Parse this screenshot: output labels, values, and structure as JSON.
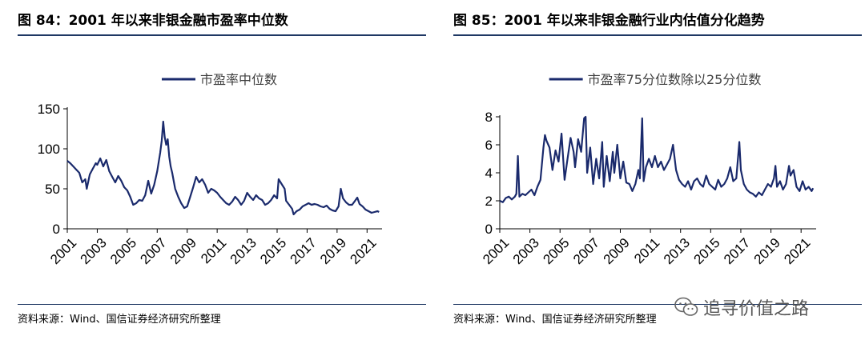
{
  "watermark": {
    "text": "追寻价值之路",
    "icon": "wechat-icon"
  },
  "colors": {
    "series": "#1a2a6c",
    "rule": "#1f3864",
    "axis": "#000000"
  },
  "charts": [
    {
      "figure_title": "图 84：2001 年以来非银金融市盈率中位数",
      "source": "资料来源：Wind、国信证券经济研究所整理"
    },
    {
      "figure_title": "图 85：2001 年以来非银金融行业内估值分化趋势",
      "source": "资料来源：Wind、国信证券经济研究所整理"
    }
  ],
  "chart_data": [
    {
      "type": "line",
      "title": "",
      "xlabel": "",
      "ylabel": "",
      "ylim": [
        0,
        150
      ],
      "yticks": [
        0,
        50,
        100,
        150
      ],
      "xlim": [
        2001,
        2022
      ],
      "xticks": [
        "2001",
        "2003",
        "2005",
        "2007",
        "2009",
        "2011",
        "2013",
        "2015",
        "2017",
        "2019",
        "2021"
      ],
      "legend_position": "top-center",
      "grid": false,
      "series": [
        {
          "name": "市盈率中位数",
          "color": "#1a2a6c",
          "points": [
            [
              2001.0,
              85
            ],
            [
              2001.2,
              82
            ],
            [
              2001.4,
              78
            ],
            [
              2001.6,
              74
            ],
            [
              2001.8,
              70
            ],
            [
              2002.0,
              58
            ],
            [
              2002.2,
              62
            ],
            [
              2002.3,
              50
            ],
            [
              2002.5,
              68
            ],
            [
              2002.7,
              75
            ],
            [
              2002.9,
              82
            ],
            [
              2003.0,
              80
            ],
            [
              2003.2,
              88
            ],
            [
              2003.4,
              78
            ],
            [
              2003.6,
              86
            ],
            [
              2003.8,
              72
            ],
            [
              2004.0,
              65
            ],
            [
              2004.2,
              58
            ],
            [
              2004.4,
              66
            ],
            [
              2004.6,
              60
            ],
            [
              2004.8,
              52
            ],
            [
              2005.0,
              48
            ],
            [
              2005.2,
              40
            ],
            [
              2005.4,
              30
            ],
            [
              2005.6,
              32
            ],
            [
              2005.8,
              36
            ],
            [
              2006.0,
              35
            ],
            [
              2006.2,
              42
            ],
            [
              2006.4,
              60
            ],
            [
              2006.6,
              44
            ],
            [
              2006.8,
              55
            ],
            [
              2007.0,
              72
            ],
            [
              2007.2,
              95
            ],
            [
              2007.3,
              110
            ],
            [
              2007.4,
              134
            ],
            [
              2007.5,
              115
            ],
            [
              2007.6,
              105
            ],
            [
              2007.7,
              112
            ],
            [
              2007.8,
              90
            ],
            [
              2007.9,
              78
            ],
            [
              2008.0,
              70
            ],
            [
              2008.2,
              50
            ],
            [
              2008.4,
              40
            ],
            [
              2008.6,
              32
            ],
            [
              2008.8,
              26
            ],
            [
              2009.0,
              28
            ],
            [
              2009.2,
              40
            ],
            [
              2009.4,
              52
            ],
            [
              2009.6,
              65
            ],
            [
              2009.8,
              58
            ],
            [
              2010.0,
              62
            ],
            [
              2010.2,
              55
            ],
            [
              2010.4,
              45
            ],
            [
              2010.6,
              50
            ],
            [
              2010.8,
              48
            ],
            [
              2011.0,
              45
            ],
            [
              2011.2,
              40
            ],
            [
              2011.4,
              36
            ],
            [
              2011.6,
              32
            ],
            [
              2011.8,
              30
            ],
            [
              2012.0,
              34
            ],
            [
              2012.2,
              40
            ],
            [
              2012.4,
              36
            ],
            [
              2012.6,
              30
            ],
            [
              2012.8,
              35
            ],
            [
              2013.0,
              45
            ],
            [
              2013.2,
              40
            ],
            [
              2013.4,
              36
            ],
            [
              2013.6,
              42
            ],
            [
              2013.8,
              38
            ],
            [
              2014.0,
              36
            ],
            [
              2014.2,
              30
            ],
            [
              2014.4,
              32
            ],
            [
              2014.6,
              36
            ],
            [
              2014.8,
              42
            ],
            [
              2015.0,
              38
            ],
            [
              2015.1,
              62
            ],
            [
              2015.3,
              56
            ],
            [
              2015.5,
              50
            ],
            [
              2015.6,
              35
            ],
            [
              2015.8,
              30
            ],
            [
              2016.0,
              25
            ],
            [
              2016.1,
              18
            ],
            [
              2016.3,
              22
            ],
            [
              2016.5,
              24
            ],
            [
              2016.7,
              28
            ],
            [
              2016.9,
              30
            ],
            [
              2017.1,
              32
            ],
            [
              2017.3,
              30
            ],
            [
              2017.5,
              31
            ],
            [
              2017.7,
              30
            ],
            [
              2017.9,
              28
            ],
            [
              2018.1,
              27
            ],
            [
              2018.3,
              29
            ],
            [
              2018.5,
              25
            ],
            [
              2018.7,
              23
            ],
            [
              2018.9,
              22
            ],
            [
              2019.1,
              28
            ],
            [
              2019.25,
              50
            ],
            [
              2019.4,
              38
            ],
            [
              2019.6,
              33
            ],
            [
              2019.8,
              30
            ],
            [
              2020.0,
              30
            ],
            [
              2020.2,
              35
            ],
            [
              2020.35,
              39
            ],
            [
              2020.5,
              31
            ],
            [
              2020.7,
              28
            ],
            [
              2020.9,
              24
            ],
            [
              2021.1,
              22
            ],
            [
              2021.3,
              20
            ],
            [
              2021.5,
              21
            ],
            [
              2021.7,
              22
            ],
            [
              2021.8,
              21
            ]
          ]
        }
      ]
    },
    {
      "type": "line",
      "title": "",
      "xlabel": "",
      "ylabel": "",
      "ylim": [
        0,
        8
      ],
      "yticks": [
        0,
        2,
        4,
        6,
        8
      ],
      "xlim": [
        2001,
        2022
      ],
      "xticks": [
        "2001",
        "2003",
        "2005",
        "2007",
        "2009",
        "2011",
        "2013",
        "2015",
        "2017",
        "2019",
        "2021"
      ],
      "legend_position": "top-center",
      "grid": false,
      "series": [
        {
          "name": "市盈率75分位数除以25分位数",
          "color": "#1a2a6c",
          "points": [
            [
              2001.0,
              2.0
            ],
            [
              2001.2,
              1.9
            ],
            [
              2001.4,
              2.2
            ],
            [
              2001.6,
              2.3
            ],
            [
              2001.8,
              2.1
            ],
            [
              2002.0,
              2.3
            ],
            [
              2002.1,
              2.5
            ],
            [
              2002.2,
              5.2
            ],
            [
              2002.3,
              2.3
            ],
            [
              2002.5,
              2.5
            ],
            [
              2002.7,
              2.4
            ],
            [
              2002.9,
              2.6
            ],
            [
              2003.1,
              2.8
            ],
            [
              2003.3,
              2.4
            ],
            [
              2003.5,
              3.0
            ],
            [
              2003.7,
              3.5
            ],
            [
              2003.9,
              5.8
            ],
            [
              2004.0,
              6.7
            ],
            [
              2004.1,
              6.3
            ],
            [
              2004.3,
              5.8
            ],
            [
              2004.5,
              4.2
            ],
            [
              2004.7,
              5.6
            ],
            [
              2004.9,
              4.8
            ],
            [
              2005.1,
              6.8
            ],
            [
              2005.3,
              3.5
            ],
            [
              2005.5,
              5.0
            ],
            [
              2005.7,
              6.5
            ],
            [
              2005.9,
              5.5
            ],
            [
              2006.0,
              4.4
            ],
            [
              2006.2,
              6.4
            ],
            [
              2006.4,
              5.5
            ],
            [
              2006.6,
              7.9
            ],
            [
              2006.7,
              8.0
            ],
            [
              2006.8,
              4.0
            ],
            [
              2007.0,
              5.8
            ],
            [
              2007.2,
              3.2
            ],
            [
              2007.4,
              5.0
            ],
            [
              2007.6,
              3.6
            ],
            [
              2007.8,
              6.2
            ],
            [
              2007.9,
              3.0
            ],
            [
              2008.1,
              5.2
            ],
            [
              2008.3,
              3.4
            ],
            [
              2008.5,
              5.5
            ],
            [
              2008.6,
              4.0
            ],
            [
              2008.8,
              6.0
            ],
            [
              2009.0,
              3.6
            ],
            [
              2009.2,
              4.8
            ],
            [
              2009.4,
              3.3
            ],
            [
              2009.6,
              3.2
            ],
            [
              2009.8,
              2.7
            ],
            [
              2010.0,
              3.2
            ],
            [
              2010.2,
              4.2
            ],
            [
              2010.3,
              3.6
            ],
            [
              2010.45,
              7.9
            ],
            [
              2010.55,
              3.4
            ],
            [
              2010.7,
              4.4
            ],
            [
              2010.9,
              5.0
            ],
            [
              2011.1,
              4.4
            ],
            [
              2011.3,
              5.2
            ],
            [
              2011.5,
              4.4
            ],
            [
              2011.7,
              4.8
            ],
            [
              2011.9,
              4.2
            ],
            [
              2012.1,
              4.6
            ],
            [
              2012.3,
              5.0
            ],
            [
              2012.5,
              6.0
            ],
            [
              2012.7,
              4.2
            ],
            [
              2012.9,
              3.5
            ],
            [
              2013.1,
              3.2
            ],
            [
              2013.3,
              3.0
            ],
            [
              2013.5,
              3.4
            ],
            [
              2013.7,
              2.8
            ],
            [
              2013.9,
              3.4
            ],
            [
              2014.1,
              3.6
            ],
            [
              2014.3,
              3.2
            ],
            [
              2014.5,
              3.0
            ],
            [
              2014.7,
              3.8
            ],
            [
              2014.9,
              3.2
            ],
            [
              2015.1,
              3.0
            ],
            [
              2015.3,
              2.8
            ],
            [
              2015.5,
              3.5
            ],
            [
              2015.7,
              3.0
            ],
            [
              2015.9,
              3.2
            ],
            [
              2016.1,
              3.6
            ],
            [
              2016.3,
              4.4
            ],
            [
              2016.5,
              3.4
            ],
            [
              2016.7,
              3.6
            ],
            [
              2016.9,
              6.2
            ],
            [
              2017.0,
              4.2
            ],
            [
              2017.2,
              3.2
            ],
            [
              2017.4,
              2.8
            ],
            [
              2017.6,
              2.6
            ],
            [
              2017.8,
              2.5
            ],
            [
              2018.0,
              2.3
            ],
            [
              2018.2,
              2.6
            ],
            [
              2018.4,
              2.4
            ],
            [
              2018.6,
              2.8
            ],
            [
              2018.8,
              3.2
            ],
            [
              2019.0,
              3.0
            ],
            [
              2019.2,
              3.6
            ],
            [
              2019.3,
              4.5
            ],
            [
              2019.4,
              3.0
            ],
            [
              2019.6,
              3.4
            ],
            [
              2019.8,
              2.8
            ],
            [
              2020.0,
              3.2
            ],
            [
              2020.2,
              4.5
            ],
            [
              2020.3,
              3.8
            ],
            [
              2020.5,
              4.2
            ],
            [
              2020.7,
              3.0
            ],
            [
              2020.9,
              2.7
            ],
            [
              2021.1,
              3.4
            ],
            [
              2021.3,
              2.8
            ],
            [
              2021.5,
              3.0
            ],
            [
              2021.7,
              2.7
            ],
            [
              2021.8,
              2.9
            ]
          ]
        }
      ]
    }
  ]
}
